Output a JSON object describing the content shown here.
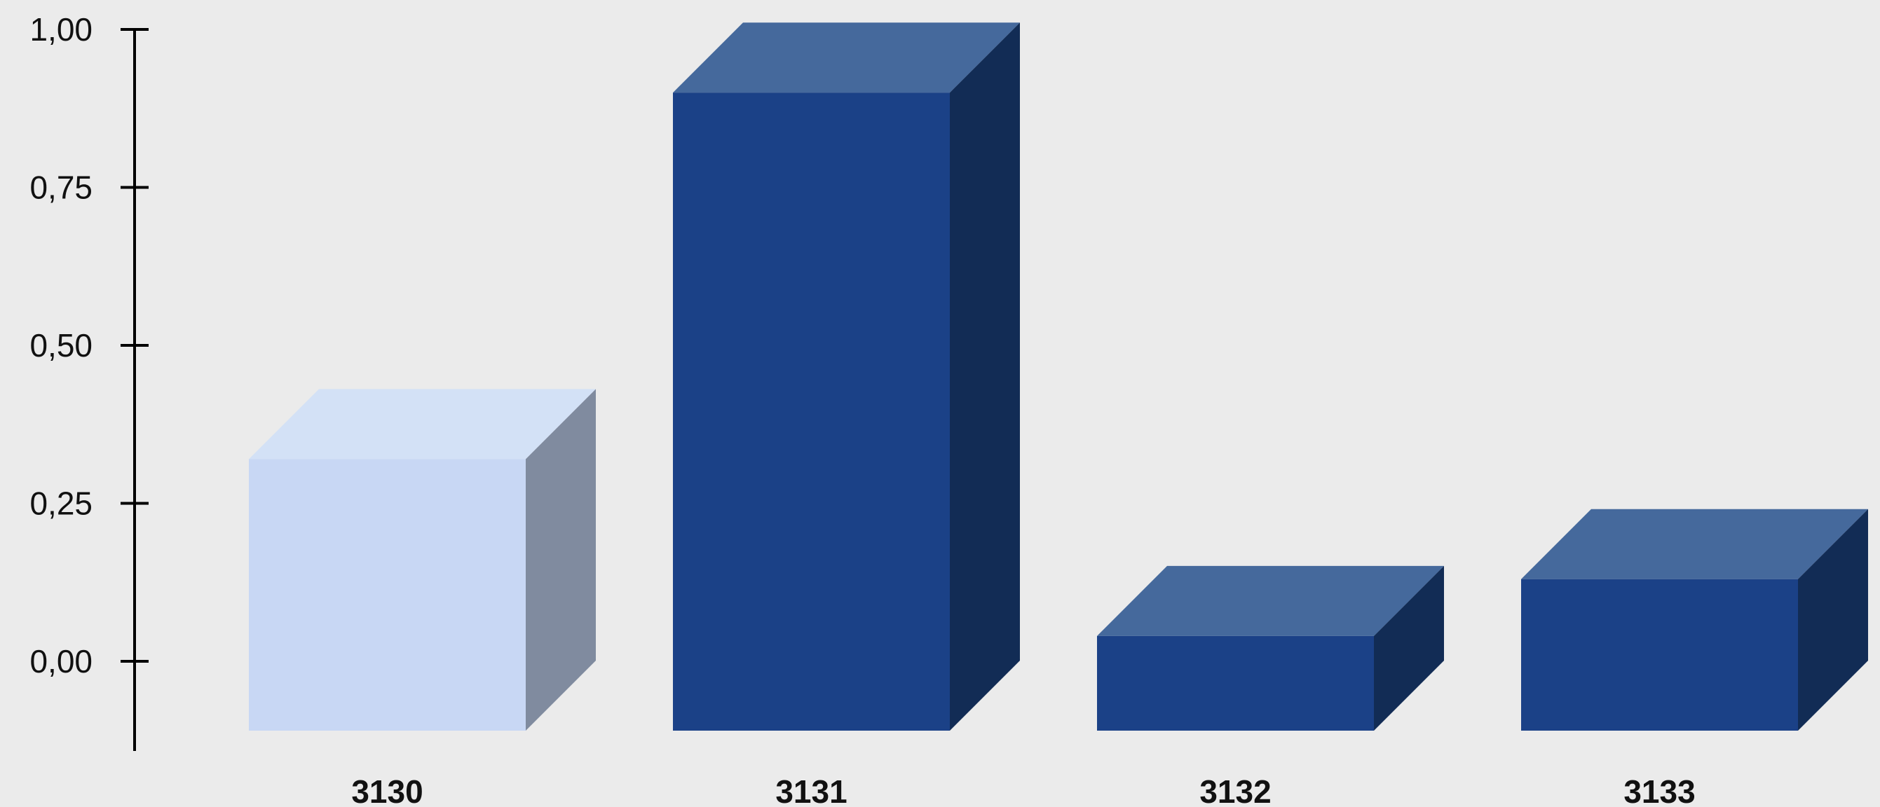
{
  "chart_data": {
    "type": "bar",
    "title": "",
    "xlabel": "",
    "ylabel": "",
    "categories": [
      "3130",
      "3131",
      "3132",
      "3133"
    ],
    "values": [
      0.32,
      0.9,
      0.04,
      0.13
    ],
    "ylim": [
      -0.11,
      1.0
    ],
    "yticks": [
      0.0,
      0.25,
      0.5,
      0.75,
      1.0
    ],
    "ytick_labels": [
      "0,00",
      "0,25",
      "0,50",
      "0,75",
      "1,00"
    ],
    "grid": false,
    "legend": "none",
    "style": "3d-column",
    "colors": {
      "highlight_front": "#c8d7f4",
      "highlight_top": "#d3e1f6",
      "highlight_side": "#808b9f",
      "bar_front": "#1b4187",
      "bar_top": "#45699c",
      "bar_side": "#122c55",
      "axis": "#000000",
      "background": "#ebebeb"
    },
    "highlight_index": 0
  }
}
